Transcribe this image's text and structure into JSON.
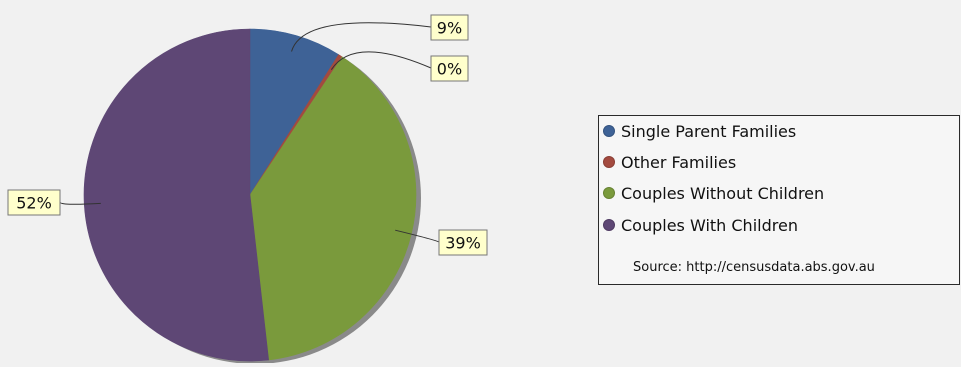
{
  "chart_data": {
    "type": "pie",
    "title": "",
    "slices": [
      {
        "label": "Single Parent Families",
        "value": 9,
        "display": "9%",
        "color": "#3e6296"
      },
      {
        "label": "Other Families",
        "value": 0.4,
        "display": "0%",
        "color": "#a34a3f"
      },
      {
        "label": "Couples Without Children",
        "value": 39,
        "display": "39%",
        "color": "#7a9a3c"
      },
      {
        "label": "Couples With Children",
        "value": 52,
        "display": "52%",
        "color": "#5e4775"
      }
    ],
    "legend_position": "right",
    "source": "Source: http://censusdata.abs.gov.au"
  }
}
